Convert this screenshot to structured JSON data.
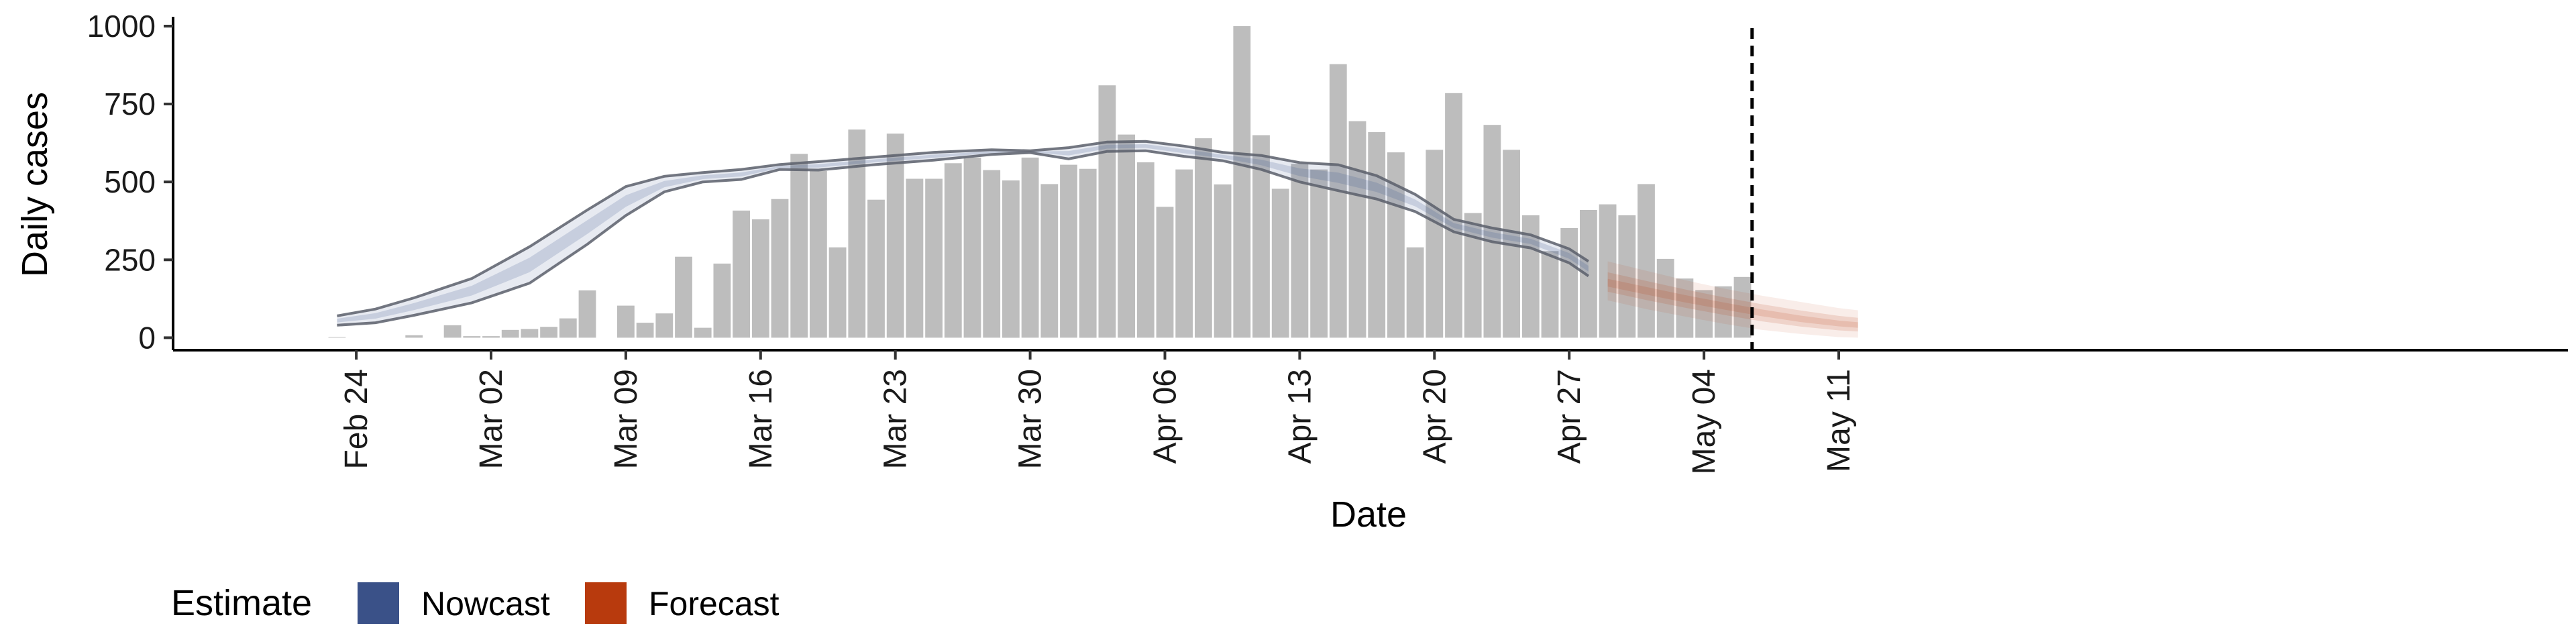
{
  "chart_data": {
    "type": "bar",
    "xlabel": "Date",
    "ylabel": "Daily cases",
    "ylim": [
      -40,
      1030
    ],
    "y_ticks": [
      0,
      250,
      500,
      750,
      1000
    ],
    "x_ticks": [
      "Feb 24",
      "Mar 02",
      "Mar 09",
      "Mar 16",
      "Mar 23",
      "Mar 30",
      "Apr 06",
      "Apr 13",
      "Apr 20",
      "Apr 27",
      "May 04",
      "May 11"
    ],
    "x_start_date": "2020-02-21",
    "bar_color": "#bdbdbd",
    "cutoff_date": "May 06",
    "bars": [
      {
        "date": "Feb 21",
        "value": 0
      },
      {
        "date": "Feb 22",
        "value": 0
      },
      {
        "date": "Feb 23",
        "value": 2
      },
      {
        "date": "Feb 24",
        "value": 0
      },
      {
        "date": "Feb 25",
        "value": 0
      },
      {
        "date": "Feb 26",
        "value": 0
      },
      {
        "date": "Feb 27",
        "value": 8
      },
      {
        "date": "Feb 28",
        "value": 0
      },
      {
        "date": "Feb 29",
        "value": 40
      },
      {
        "date": "Mar 01",
        "value": 5
      },
      {
        "date": "Mar 02",
        "value": 5
      },
      {
        "date": "Mar 03",
        "value": 25
      },
      {
        "date": "Mar 04",
        "value": 28
      },
      {
        "date": "Mar 05",
        "value": 35
      },
      {
        "date": "Mar 06",
        "value": 62
      },
      {
        "date": "Mar 07",
        "value": 152
      },
      {
        "date": "Mar 08",
        "value": 0
      },
      {
        "date": "Mar 09",
        "value": 103
      },
      {
        "date": "Mar 10",
        "value": 48
      },
      {
        "date": "Mar 11",
        "value": 78
      },
      {
        "date": "Mar 12",
        "value": 260
      },
      {
        "date": "Mar 13",
        "value": 32
      },
      {
        "date": "Mar 14",
        "value": 238
      },
      {
        "date": "Mar 15",
        "value": 408
      },
      {
        "date": "Mar 16",
        "value": 380
      },
      {
        "date": "Mar 17",
        "value": 445
      },
      {
        "date": "Mar 18",
        "value": 590
      },
      {
        "date": "Mar 19",
        "value": 535
      },
      {
        "date": "Mar 20",
        "value": 290
      },
      {
        "date": "Mar 21",
        "value": 668
      },
      {
        "date": "Mar 22",
        "value": 443
      },
      {
        "date": "Mar 23",
        "value": 655
      },
      {
        "date": "Mar 24",
        "value": 510
      },
      {
        "date": "Mar 25",
        "value": 510
      },
      {
        "date": "Mar 26",
        "value": 560
      },
      {
        "date": "Mar 27",
        "value": 578
      },
      {
        "date": "Mar 28",
        "value": 538
      },
      {
        "date": "Mar 29",
        "value": 505
      },
      {
        "date": "Mar 30",
        "value": 578
      },
      {
        "date": "Mar 31",
        "value": 493
      },
      {
        "date": "Apr 01",
        "value": 555
      },
      {
        "date": "Apr 02",
        "value": 542
      },
      {
        "date": "Apr 03",
        "value": 810
      },
      {
        "date": "Apr 04",
        "value": 652
      },
      {
        "date": "Apr 05",
        "value": 563
      },
      {
        "date": "Apr 06",
        "value": 420
      },
      {
        "date": "Apr 07",
        "value": 540
      },
      {
        "date": "Apr 08",
        "value": 640
      },
      {
        "date": "Apr 09",
        "value": 492
      },
      {
        "date": "Apr 10",
        "value": 1000
      },
      {
        "date": "Apr 11",
        "value": 650
      },
      {
        "date": "Apr 12",
        "value": 478
      },
      {
        "date": "Apr 13",
        "value": 558
      },
      {
        "date": "Apr 14",
        "value": 540
      },
      {
        "date": "Apr 15",
        "value": 878
      },
      {
        "date": "Apr 16",
        "value": 695
      },
      {
        "date": "Apr 17",
        "value": 660
      },
      {
        "date": "Apr 18",
        "value": 595
      },
      {
        "date": "Apr 19",
        "value": 290
      },
      {
        "date": "Apr 20",
        "value": 603
      },
      {
        "date": "Apr 21",
        "value": 785
      },
      {
        "date": "Apr 22",
        "value": 400
      },
      {
        "date": "Apr 23",
        "value": 683
      },
      {
        "date": "Apr 24",
        "value": 603
      },
      {
        "date": "Apr 25",
        "value": 393
      },
      {
        "date": "Apr 26",
        "value": 278
      },
      {
        "date": "Apr 27",
        "value": 352
      },
      {
        "date": "Apr 28",
        "value": 410
      },
      {
        "date": "Apr 29",
        "value": 428
      },
      {
        "date": "Apr 30",
        "value": 393
      },
      {
        "date": "May 01",
        "value": 493
      },
      {
        "date": "May 02",
        "value": 253
      },
      {
        "date": "May 03",
        "value": 190
      },
      {
        "date": "May 04",
        "value": 153
      },
      {
        "date": "May 05",
        "value": 165
      },
      {
        "date": "May 06",
        "value": 195
      }
    ],
    "nowcast": {
      "name": "Nowcast",
      "color": "#3A5188",
      "dates": [
        "Feb 23",
        "Feb 25",
        "Feb 27",
        "Mar 01",
        "Mar 04",
        "Mar 07",
        "Mar 09",
        "Mar 11",
        "Mar 13",
        "Mar 15",
        "Mar 17",
        "Mar 19",
        "Mar 22",
        "Mar 25",
        "Mar 28",
        "Mar 30",
        "Apr 01",
        "Apr 03",
        "Apr 05",
        "Apr 07",
        "Apr 09",
        "Apr 11",
        "Apr 13",
        "Apr 15",
        "Apr 17",
        "Apr 19",
        "Apr 21",
        "Apr 23",
        "Apr 25",
        "Apr 27",
        "Apr 28"
      ],
      "upper": [
        70,
        92,
        128,
        190,
        292,
        410,
        485,
        518,
        530,
        540,
        556,
        565,
        580,
        595,
        603,
        600,
        610,
        628,
        630,
        615,
        595,
        585,
        562,
        555,
        520,
        460,
        380,
        352,
        330,
        285,
        245
      ],
      "lower": [
        40,
        48,
        72,
        112,
        175,
        300,
        392,
        468,
        500,
        508,
        540,
        538,
        556,
        570,
        588,
        594,
        574,
        598,
        600,
        582,
        568,
        540,
        500,
        472,
        445,
        405,
        340,
        308,
        288,
        240,
        198
      ]
    },
    "forecast": {
      "name": "Forecast",
      "color": "#B83A0D",
      "dates": [
        "Apr 29",
        "May 01",
        "May 03",
        "May 05",
        "May 07",
        "May 09",
        "May 11",
        "May 12"
      ],
      "upper": [
        245,
        215,
        185,
        158,
        135,
        115,
        95,
        88
      ],
      "median": [
        175,
        150,
        125,
        102,
        80,
        60,
        45,
        40
      ],
      "lower": [
        120,
        92,
        68,
        45,
        25,
        12,
        2,
        0
      ]
    },
    "legend": {
      "title": "Estimate",
      "position": "bottom-left",
      "items": [
        {
          "label": "Nowcast",
          "color": "#3A5188"
        },
        {
          "label": "Forecast",
          "color": "#B83A0D"
        }
      ]
    }
  }
}
